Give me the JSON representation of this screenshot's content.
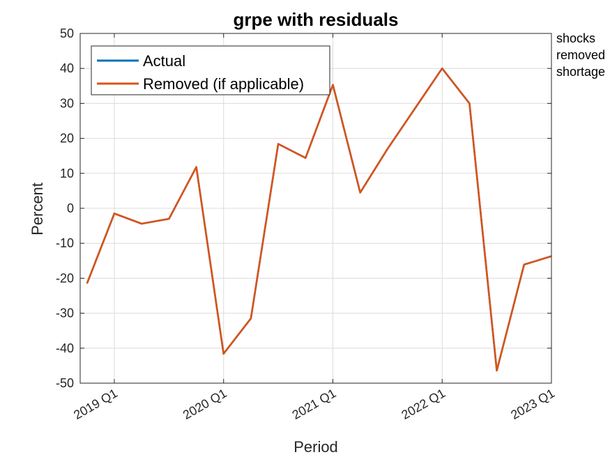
{
  "chart_data": {
    "type": "line",
    "title": "grpe with residuals",
    "xlabel": "Period",
    "ylabel": "Percent",
    "ylim": [
      -50,
      50
    ],
    "yticks": [
      -50,
      -40,
      -30,
      -20,
      -10,
      0,
      10,
      20,
      30,
      40,
      50
    ],
    "xlim": [
      -1.25,
      16
    ],
    "xticks": [
      {
        "x": 0,
        "label": "2019 Q1"
      },
      {
        "x": 4,
        "label": "2020 Q1"
      },
      {
        "x": 8,
        "label": "2021 Q1"
      },
      {
        "x": 12,
        "label": "2022 Q1"
      },
      {
        "x": 16,
        "label": "2023 Q1"
      }
    ],
    "grid": true,
    "legend_position": "top-left",
    "x": [
      -1,
      0,
      1,
      2,
      3,
      4,
      5,
      6,
      7,
      8,
      9,
      10,
      11,
      12,
      13,
      14,
      15,
      16
    ],
    "series": [
      {
        "name": "Actual",
        "color": "#0072BD",
        "values": [
          -21.5,
          -1.5,
          -4.4,
          -3.0,
          11.8,
          -41.6,
          -31.5,
          18.4,
          14.4,
          35.3,
          4.5,
          17.0,
          28.5,
          40.0,
          30.0,
          -46.4,
          -16.1,
          -13.7
        ]
      },
      {
        "name": "Removed (if applicable)",
        "color": "#D95319",
        "values": [
          -21.5,
          -1.5,
          -4.4,
          -3.0,
          11.8,
          -41.6,
          -31.5,
          18.4,
          14.4,
          35.3,
          4.5,
          17.0,
          28.5,
          40.0,
          30.0,
          -46.4,
          -16.1,
          -13.7
        ]
      }
    ],
    "annotation_lines": [
      "shocks",
      "removed",
      "shortage"
    ]
  }
}
